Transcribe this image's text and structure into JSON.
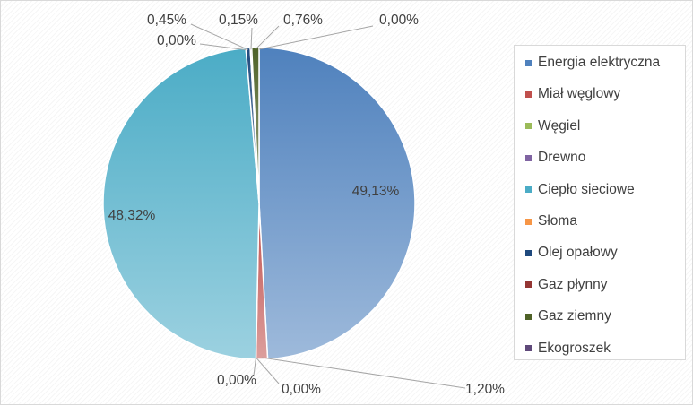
{
  "chart_data": {
    "type": "pie",
    "title": "",
    "slices": [
      {
        "name": "Energia elektryczna",
        "value": 49.13,
        "label": "49,13%",
        "color": "#4f81bd"
      },
      {
        "name": "Miał węglowy",
        "value": 1.2,
        "label": "1,20%",
        "color": "#c0504d"
      },
      {
        "name": "Węgiel",
        "value": 0.0,
        "label": "0,00%",
        "color": "#9bbb59"
      },
      {
        "name": "Drewno",
        "value": 0.0,
        "label": "0,00%",
        "color": "#8064a2"
      },
      {
        "name": "Ciepło sieciowe",
        "value": 48.32,
        "label": "48,32%",
        "color": "#4bacc6"
      },
      {
        "name": "Słoma",
        "value": 0.0,
        "label": "0,00%",
        "color": "#f79646"
      },
      {
        "name": "Olej opałowy",
        "value": 0.45,
        "label": "0,45%",
        "color": "#1f497d"
      },
      {
        "name": "Gaz płynny",
        "value": 0.15,
        "label": "0,15%",
        "color": "#943634"
      },
      {
        "name": "Gaz ziemny",
        "value": 0.76,
        "label": "0,76%",
        "color": "#4f6228"
      },
      {
        "name": "Ekogroszek",
        "value": 0.0,
        "label": "0,00%",
        "color": "#5f497a"
      }
    ],
    "legend_position": "right"
  }
}
